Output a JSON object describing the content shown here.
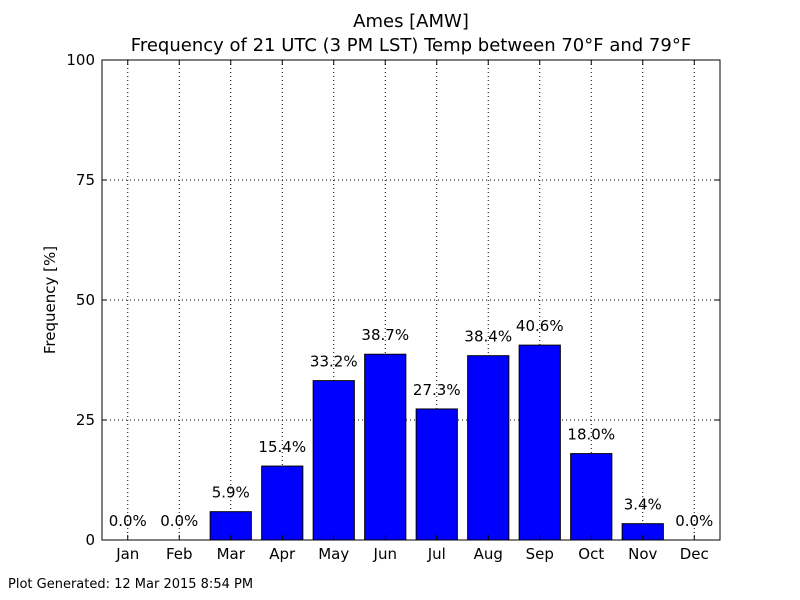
{
  "chart_data": {
    "type": "bar",
    "title": "Ames [AMW]",
    "subtitle": "Frequency of 21 UTC (3 PM LST) Temp between 70°F and 79°F",
    "xlabel": "",
    "ylabel": "Frequency [%]",
    "ylim": [
      0,
      100
    ],
    "yticks": [
      "0",
      "25",
      "50",
      "75",
      "100"
    ],
    "categories": [
      "Jan",
      "Feb",
      "Mar",
      "Apr",
      "May",
      "Jun",
      "Jul",
      "Aug",
      "Sep",
      "Oct",
      "Nov",
      "Dec"
    ],
    "values": [
      0.0,
      0.0,
      5.9,
      15.4,
      33.2,
      38.7,
      27.3,
      38.4,
      40.6,
      18.0,
      3.4,
      0.0
    ],
    "data_labels": [
      "0.0%",
      "0.0%",
      "5.9%",
      "15.4%",
      "33.2%",
      "38.7%",
      "27.3%",
      "38.4%",
      "40.6%",
      "18.0%",
      "3.4%",
      "0.0%"
    ],
    "grid": true,
    "bar_color": "#0000ff"
  },
  "footer": {
    "text": "Plot Generated: 12 Mar 2015 8:54 PM"
  }
}
